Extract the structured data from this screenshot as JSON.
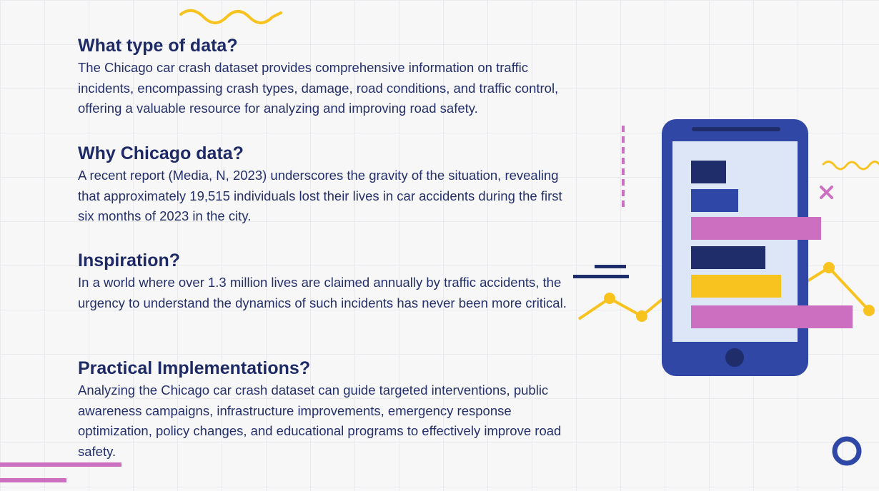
{
  "sections": [
    {
      "heading": "What type of data?",
      "body": "The Chicago car crash dataset provides comprehensive information on traffic incidents, encompassing crash types, damage, road conditions, and traffic control, offering a valuable resource for analyzing and improving road safety."
    },
    {
      "heading": "Why Chicago data?",
      "body": "A recent report (Media, N, 2023) underscores the gravity of the situation, revealing that approximately 19,515 individuals lost their lives in car accidents during the first six months of 2023 in the city."
    },
    {
      "heading": "Inspiration?",
      "body": "In a world where over 1.3 million lives are claimed annually by traffic accidents, the urgency to understand the dynamics of such incidents has never been more critical."
    },
    {
      "heading": "Practical Implementations?",
      "body": "Analyzing the Chicago car crash dataset can guide targeted interventions, public awareness campaigns, infrastructure improvements, emergency response optimization, policy changes, and educational programs to effectively improve road safety."
    }
  ],
  "colors": {
    "navy": "#1e2a66",
    "phone_blue": "#3047a6",
    "screen": "#dce6f7",
    "yellow": "#f8c21f",
    "pink": "#cc6fc1",
    "bar_dark": "#1f2d6b",
    "bar_mid": "#2f48a8"
  },
  "illustration": {
    "name": "phone-bar-chart-illustration",
    "bars": [
      {
        "color": "#1f2d6b",
        "value": 0.27
      },
      {
        "color": "#2f48a8",
        "value": 0.36
      },
      {
        "color": "#cc6fc1",
        "value": 1.0
      },
      {
        "color": "#1f2d6b",
        "value": 0.57
      },
      {
        "color": "#f8c21f",
        "value": 0.69
      },
      {
        "color": "#cc6fc1",
        "value": 1.24
      }
    ]
  }
}
